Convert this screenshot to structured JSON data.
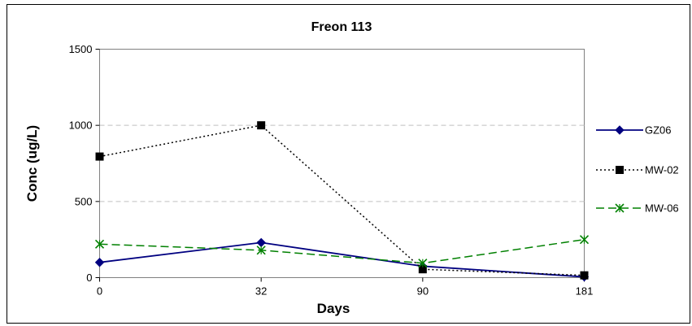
{
  "chart_data": {
    "type": "line",
    "title": "Freon 113",
    "xlabel": "Days",
    "ylabel": "Conc (ug/L)",
    "categories": [
      "0",
      "32",
      "90",
      "181"
    ],
    "ylim": [
      0,
      1500
    ],
    "yticks": [
      0,
      500,
      1000,
      1500
    ],
    "grid": "horizontal dashed",
    "legend": "right",
    "series": [
      {
        "name": "GZ06",
        "values": [
          100,
          230,
          75,
          5
        ],
        "color": "#000080",
        "dash": "solid",
        "marker": "diamond"
      },
      {
        "name": "MW-02",
        "values": [
          795,
          1000,
          55,
          15
        ],
        "color": "#000000",
        "dash": "dotted",
        "marker": "square"
      },
      {
        "name": "MW-06",
        "values": [
          220,
          180,
          95,
          250
        ],
        "color": "#008000",
        "dash": "dashed",
        "marker": "x"
      }
    ]
  }
}
